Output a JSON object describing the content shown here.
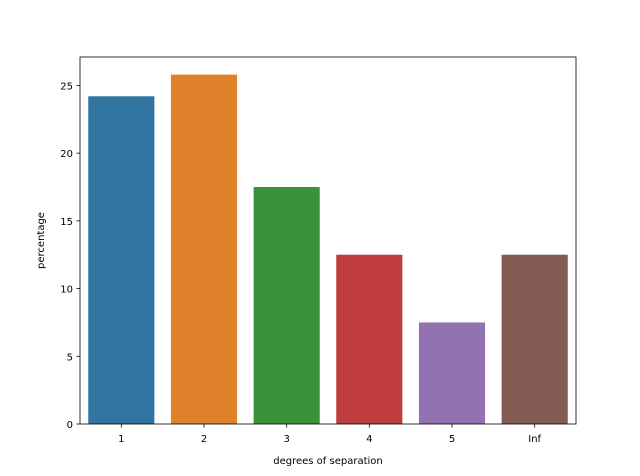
{
  "chart_data": {
    "type": "bar",
    "title": "",
    "xlabel": "degrees of separation",
    "ylabel": "percentage",
    "categories": [
      "1",
      "2",
      "3",
      "4",
      "5",
      "Inf"
    ],
    "values": [
      24.2,
      25.8,
      17.5,
      12.5,
      7.5,
      12.5
    ],
    "colors": [
      "#3274a1",
      "#e1812c",
      "#3a923a",
      "#c03d3e",
      "#9372b2",
      "#845b53"
    ],
    "ylim": [
      0,
      27.1
    ],
    "yticks": [
      0,
      5,
      10,
      15,
      20,
      25
    ],
    "grid": false,
    "legend": "none"
  }
}
